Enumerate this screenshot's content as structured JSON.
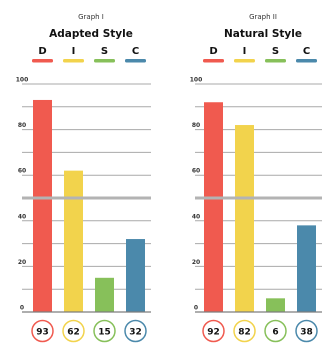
{
  "colors": {
    "D": "#f05a4f",
    "I": "#f2d34c",
    "S": "#87c05a",
    "C": "#4b89ab"
  },
  "chart_data": [
    {
      "type": "bar",
      "graph_label": "Graph I",
      "title": "Adapted Style",
      "categories": [
        "D",
        "I",
        "S",
        "C"
      ],
      "values": [
        93,
        62,
        15,
        32
      ],
      "yticks": [
        "100",
        "80",
        "60",
        "40",
        "20",
        "0"
      ],
      "ylim": [
        0,
        100
      ],
      "midline": 50,
      "grid": true,
      "legend": "top"
    },
    {
      "type": "bar",
      "graph_label": "Graph II",
      "title": "Natural Style",
      "categories": [
        "D",
        "I",
        "S",
        "C"
      ],
      "values": [
        92,
        82,
        6,
        38
      ],
      "yticks": [
        "100",
        "80",
        "60",
        "40",
        "20",
        "0"
      ],
      "ylim": [
        0,
        100
      ],
      "midline": 50,
      "grid": true,
      "legend": "top"
    }
  ]
}
